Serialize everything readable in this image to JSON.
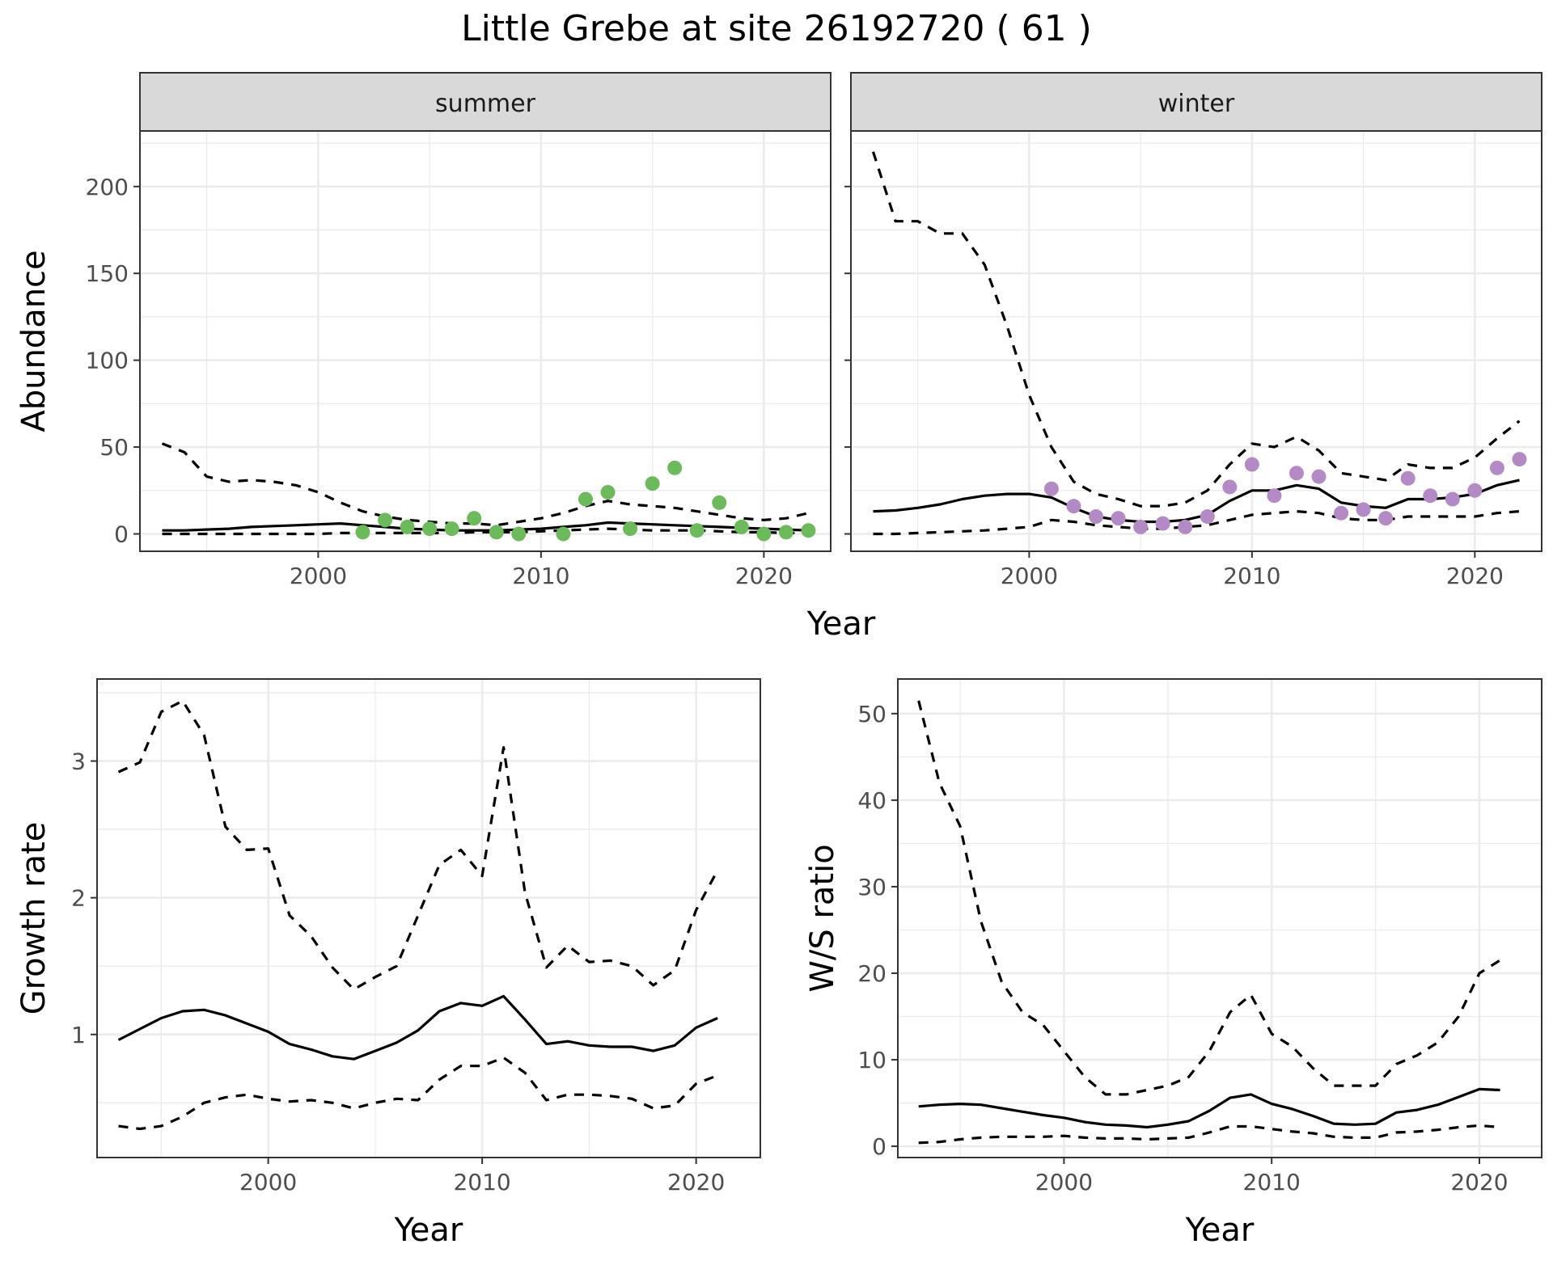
{
  "title": "Little Grebe at site 26192720 ( 61 )",
  "colors": {
    "summer": "#6cbb5a",
    "winter": "#b48ac6",
    "line": "#000000"
  },
  "chart_data": [
    {
      "type": "line",
      "panel": "summer",
      "ylabel": "Abundance",
      "xlim": [
        1992,
        2023
      ],
      "ylim": [
        -10,
        232
      ],
      "xticks": [
        "2000",
        "2010",
        "2020"
      ],
      "yticks": [
        "0",
        "50",
        "100",
        "150",
        "200"
      ],
      "x": [
        1993,
        1994,
        1995,
        1996,
        1997,
        1998,
        1999,
        2000,
        2001,
        2002,
        2003,
        2004,
        2005,
        2006,
        2007,
        2008,
        2009,
        2010,
        2011,
        2012,
        2013,
        2014,
        2015,
        2016,
        2017,
        2018,
        2019,
        2020,
        2021,
        2022
      ],
      "series": [
        {
          "role": "fit",
          "values": [
            2,
            2,
            2.5,
            3,
            4,
            4.5,
            5,
            5.5,
            6,
            5,
            4,
            3,
            2.5,
            2,
            2,
            2,
            2.5,
            3,
            4,
            5,
            6.5,
            6,
            5.5,
            5,
            4.5,
            4,
            3.5,
            3,
            2.5,
            2
          ]
        },
        {
          "role": "upper",
          "values": [
            52,
            47,
            33,
            30,
            31,
            30,
            28,
            24,
            18,
            13,
            10,
            8,
            7,
            6,
            6,
            5,
            7,
            9,
            12,
            16,
            19,
            17,
            16,
            15,
            13,
            11,
            9,
            8,
            9,
            12
          ]
        },
        {
          "role": "lower",
          "values": [
            0,
            0,
            0,
            0,
            0,
            0,
            0,
            0,
            0.5,
            0.5,
            0.5,
            0.5,
            0.5,
            0.5,
            1,
            1,
            1,
            1.5,
            2,
            2.5,
            3,
            2.5,
            2,
            2,
            2,
            1.5,
            1,
            1,
            0.5,
            0.5
          ]
        }
      ],
      "points": {
        "x": [
          2002,
          2003,
          2004,
          2005,
          2006,
          2007,
          2008,
          2009,
          2011,
          2012,
          2013,
          2014,
          2015,
          2016,
          2017,
          2018,
          2019,
          2020,
          2021,
          2022
        ],
        "y": [
          1,
          8,
          4,
          3,
          3,
          9,
          1,
          0,
          0,
          20,
          24,
          3,
          29,
          38,
          2,
          18,
          4,
          0,
          1,
          2
        ]
      }
    },
    {
      "type": "line",
      "panel": "winter",
      "xlim": [
        1992,
        2023
      ],
      "ylim": [
        -10,
        232
      ],
      "xticks": [
        "2000",
        "2010",
        "2020"
      ],
      "x": [
        1993,
        1994,
        1995,
        1996,
        1997,
        1998,
        1999,
        2000,
        2001,
        2002,
        2003,
        2004,
        2005,
        2006,
        2007,
        2008,
        2009,
        2010,
        2011,
        2012,
        2013,
        2014,
        2015,
        2016,
        2017,
        2018,
        2019,
        2020,
        2021,
        2022
      ],
      "series": [
        {
          "role": "fit",
          "values": [
            13,
            13.5,
            15,
            17,
            20,
            22,
            23,
            23,
            21,
            15,
            10,
            8,
            7,
            7,
            8,
            11,
            19,
            25,
            25,
            28,
            26,
            18,
            16,
            15,
            20,
            20,
            21,
            23,
            28,
            31
          ]
        },
        {
          "role": "upper",
          "values": [
            220,
            180,
            180,
            173,
            173,
            155,
            120,
            80,
            50,
            30,
            23,
            20,
            16,
            16,
            18,
            25,
            40,
            52,
            50,
            56,
            48,
            35,
            33,
            31,
            40,
            38,
            38,
            44,
            55,
            65
          ]
        },
        {
          "role": "lower",
          "values": [
            0,
            0,
            0.5,
            1,
            1.5,
            2,
            3,
            4,
            8,
            7,
            5,
            4,
            3,
            3,
            4,
            5,
            8,
            11,
            12,
            13,
            12,
            9,
            8,
            8,
            10,
            10,
            10,
            10,
            12,
            13
          ]
        }
      ],
      "points": {
        "x": [
          2001,
          2002,
          2003,
          2004,
          2005,
          2006,
          2007,
          2008,
          2009,
          2010,
          2011,
          2012,
          2013,
          2014,
          2015,
          2016,
          2017,
          2018,
          2019,
          2020,
          2021,
          2022
        ],
        "y": [
          26,
          16,
          10,
          9,
          4,
          6,
          4,
          10,
          27,
          40,
          22,
          35,
          33,
          12,
          14,
          9,
          32,
          22,
          20,
          25,
          38,
          43
        ]
      }
    },
    {
      "type": "line",
      "panel": "growth",
      "xlabel": "Year",
      "ylabel": "Growth rate",
      "xlim": [
        1992,
        2023
      ],
      "ylim": [
        0.1,
        3.6
      ],
      "xticks": [
        "2000",
        "2010",
        "2020"
      ],
      "yticks": [
        "1",
        "2",
        "3"
      ],
      "x": [
        1993,
        1994,
        1995,
        1996,
        1997,
        1998,
        1999,
        2000,
        2001,
        2002,
        2003,
        2004,
        2005,
        2006,
        2007,
        2008,
        2009,
        2010,
        2011,
        2012,
        2013,
        2014,
        2015,
        2016,
        2017,
        2018,
        2019,
        2020,
        2021
      ],
      "series": [
        {
          "role": "fit",
          "values": [
            0.96,
            1.04,
            1.12,
            1.17,
            1.18,
            1.14,
            1.08,
            1.02,
            0.93,
            0.89,
            0.84,
            0.82,
            0.88,
            0.94,
            1.03,
            1.17,
            1.23,
            1.21,
            1.28,
            1.11,
            0.93,
            0.95,
            0.92,
            0.91,
            0.91,
            0.88,
            0.92,
            1.05,
            1.12
          ]
        },
        {
          "role": "upper",
          "values": [
            2.92,
            2.99,
            3.36,
            3.44,
            3.19,
            2.52,
            2.35,
            2.36,
            1.87,
            1.72,
            1.49,
            1.33,
            1.42,
            1.5,
            1.87,
            2.24,
            2.35,
            2.16,
            3.1,
            2.04,
            1.49,
            1.65,
            1.53,
            1.54,
            1.5,
            1.36,
            1.47,
            1.91,
            2.2
          ]
        },
        {
          "role": "lower",
          "values": [
            0.33,
            0.31,
            0.33,
            0.4,
            0.5,
            0.54,
            0.56,
            0.53,
            0.51,
            0.52,
            0.5,
            0.46,
            0.5,
            0.53,
            0.52,
            0.67,
            0.77,
            0.77,
            0.83,
            0.72,
            0.52,
            0.56,
            0.56,
            0.55,
            0.53,
            0.46,
            0.48,
            0.64,
            0.7
          ]
        }
      ]
    },
    {
      "type": "line",
      "panel": "ratio",
      "xlabel": "Year",
      "ylabel": "W/S ratio",
      "xlim": [
        1992,
        2023
      ],
      "ylim": [
        -1.3,
        54
      ],
      "xticks": [
        "2000",
        "2010",
        "2020"
      ],
      "yticks": [
        "0",
        "10",
        "20",
        "30",
        "40",
        "50"
      ],
      "x": [
        1993,
        1994,
        1995,
        1996,
        1997,
        1998,
        1999,
        2000,
        2001,
        2002,
        2003,
        2004,
        2005,
        2006,
        2007,
        2008,
        2009,
        2010,
        2011,
        2012,
        2013,
        2014,
        2015,
        2016,
        2017,
        2018,
        2019,
        2020,
        2021
      ],
      "series": [
        {
          "role": "fit",
          "values": [
            4.6,
            4.8,
            4.9,
            4.8,
            4.4,
            4,
            3.6,
            3.3,
            2.8,
            2.5,
            2.4,
            2.2,
            2.5,
            2.9,
            4.1,
            5.6,
            6,
            4.9,
            4.3,
            3.5,
            2.6,
            2.5,
            2.6,
            3.9,
            4.2,
            4.8,
            5.7,
            6.6,
            6.5
          ]
        },
        {
          "role": "upper",
          "values": [
            51.5,
            42,
            37,
            26,
            19,
            15.5,
            14,
            11,
            8,
            6,
            6,
            6.5,
            7,
            8,
            11,
            15.5,
            17.5,
            13,
            11.5,
            9,
            7,
            7,
            7,
            9.5,
            10.5,
            12,
            15,
            20,
            21.5
          ]
        },
        {
          "role": "lower",
          "values": [
            0.4,
            0.5,
            0.8,
            1,
            1.1,
            1.1,
            1.1,
            1.2,
            1,
            0.9,
            0.9,
            0.8,
            0.9,
            1,
            1.6,
            2.3,
            2.3,
            2,
            1.7,
            1.5,
            1.1,
            1,
            1,
            1.6,
            1.7,
            1.9,
            2.2,
            2.4,
            2.2
          ]
        }
      ]
    }
  ]
}
